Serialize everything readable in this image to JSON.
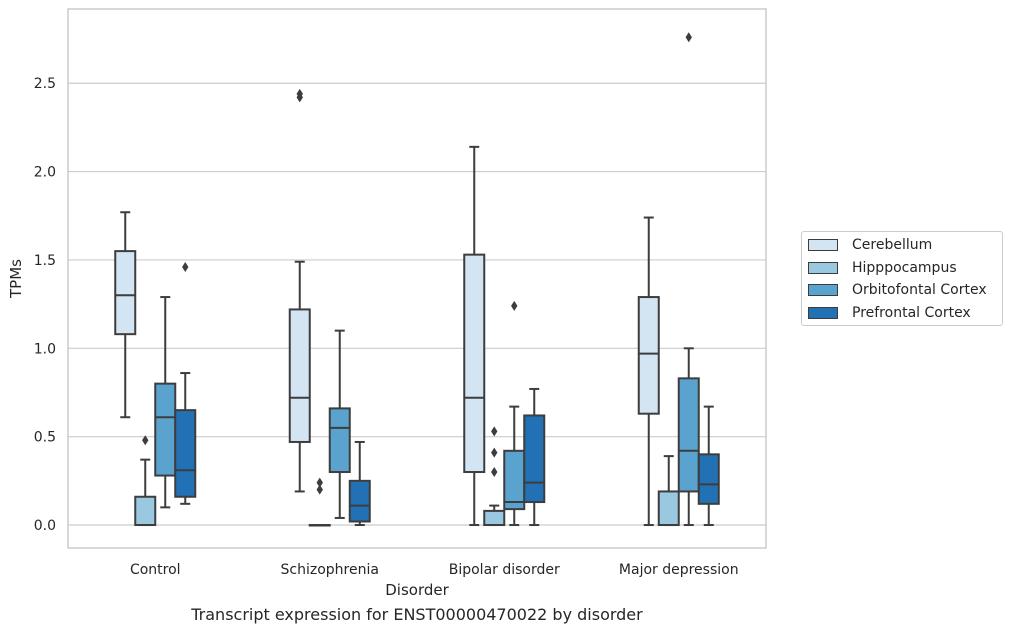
{
  "chart_data": {
    "type": "box",
    "title": "",
    "caption": "Transcript expression for ENST00000470022 by disorder",
    "xlabel": "Disorder",
    "ylabel": "TPMs",
    "ylim": [
      -0.13,
      2.92
    ],
    "yticks": [
      0.0,
      0.5,
      1.0,
      1.5,
      2.0,
      2.5
    ],
    "ytick_labels": [
      "0.0",
      "0.5",
      "1.0",
      "1.5",
      "2.0",
      "2.5"
    ],
    "categories": [
      "Control",
      "Schizophrenia",
      "Bipolar disorder",
      "Major depression"
    ],
    "grid": "horizontal",
    "legend_position": "right",
    "series": [
      {
        "name": "Cerebellum",
        "color": "#d3e4f3",
        "boxes": [
          {
            "whislo": 0.61,
            "q1": 1.08,
            "med": 1.3,
            "q3": 1.55,
            "whishi": 1.77,
            "fliers": []
          },
          {
            "whislo": 0.19,
            "q1": 0.47,
            "med": 0.72,
            "q3": 1.22,
            "whishi": 1.49,
            "fliers": [
              2.42,
              2.44
            ]
          },
          {
            "whislo": 0.0,
            "q1": 0.3,
            "med": 0.72,
            "q3": 1.53,
            "whishi": 2.14,
            "fliers": []
          },
          {
            "whislo": 0.0,
            "q1": 0.63,
            "med": 0.97,
            "q3": 1.29,
            "whishi": 1.74,
            "fliers": []
          }
        ]
      },
      {
        "name": "Hipppocampus",
        "color": "#9ac8e0",
        "boxes": [
          {
            "whislo": 0.0,
            "q1": 0.0,
            "med": 0.0,
            "q3": 0.16,
            "whishi": 0.37,
            "fliers": [
              0.48
            ]
          },
          {
            "whislo": 0.0,
            "q1": 0.0,
            "med": 0.0,
            "q3": 0.0,
            "whishi": 0.0,
            "fliers": [
              0.2,
              0.24
            ]
          },
          {
            "whislo": 0.0,
            "q1": 0.0,
            "med": 0.0,
            "q3": 0.08,
            "whishi": 0.11,
            "fliers": [
              0.3,
              0.41,
              0.53
            ]
          },
          {
            "whislo": 0.0,
            "q1": 0.0,
            "med": 0.0,
            "q3": 0.19,
            "whishi": 0.39,
            "fliers": []
          }
        ]
      },
      {
        "name": "Orbitofontal Cortex",
        "color": "#5ba3cf",
        "boxes": [
          {
            "whislo": 0.1,
            "q1": 0.28,
            "med": 0.61,
            "q3": 0.8,
            "whishi": 1.29,
            "fliers": []
          },
          {
            "whislo": 0.04,
            "q1": 0.3,
            "med": 0.55,
            "q3": 0.66,
            "whishi": 1.1,
            "fliers": []
          },
          {
            "whislo": 0.0,
            "q1": 0.09,
            "med": 0.13,
            "q3": 0.42,
            "whishi": 0.67,
            "fliers": [
              1.24
            ]
          },
          {
            "whislo": 0.0,
            "q1": 0.19,
            "med": 0.42,
            "q3": 0.83,
            "whishi": 1.0,
            "fliers": [
              2.76
            ]
          }
        ]
      },
      {
        "name": "Prefrontal Cortex",
        "color": "#2271b5",
        "boxes": [
          {
            "whislo": 0.12,
            "q1": 0.16,
            "med": 0.31,
            "q3": 0.65,
            "whishi": 0.86,
            "fliers": [
              1.46
            ]
          },
          {
            "whislo": 0.0,
            "q1": 0.02,
            "med": 0.11,
            "q3": 0.25,
            "whishi": 0.47,
            "fliers": []
          },
          {
            "whislo": 0.0,
            "q1": 0.13,
            "med": 0.24,
            "q3": 0.62,
            "whishi": 0.77,
            "fliers": []
          },
          {
            "whislo": 0.0,
            "q1": 0.12,
            "med": 0.23,
            "q3": 0.4,
            "whishi": 0.67,
            "fliers": []
          }
        ]
      }
    ]
  }
}
